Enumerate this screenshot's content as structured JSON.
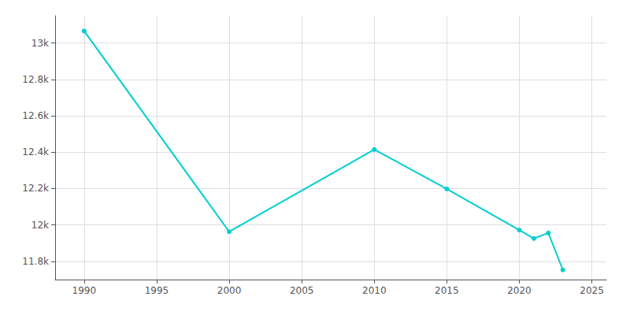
{
  "chart_data": {
    "type": "line",
    "x": [
      1990,
      2000,
      2010,
      2015,
      2020,
      2021,
      2022,
      2023
    ],
    "values": [
      13066,
      11963,
      12415,
      12198,
      11972,
      11926,
      11956,
      11753
    ],
    "color": "#00CED1",
    "marker": "circle",
    "xlim": [
      1988,
      2026
    ],
    "xticks": [
      1990,
      1995,
      2000,
      2005,
      2010,
      2015,
      2020,
      2025
    ],
    "ylim": [
      11700,
      13150
    ],
    "yticks": [
      {
        "value": 11800,
        "label": "11.8k"
      },
      {
        "value": 12000,
        "label": "12k"
      },
      {
        "value": 12200,
        "label": "12.2k"
      },
      {
        "value": 12400,
        "label": "12.4k"
      },
      {
        "value": 12600,
        "label": "12.6k"
      },
      {
        "value": 12800,
        "label": "12.8k"
      },
      {
        "value": 13000,
        "label": "13k"
      }
    ],
    "grid": true
  }
}
